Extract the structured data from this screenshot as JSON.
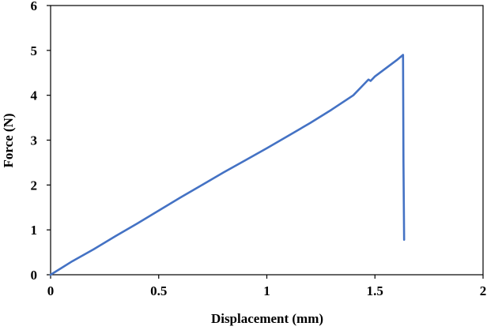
{
  "chart_data": {
    "type": "line",
    "title": "",
    "xlabel": "Displacement (mm)",
    "ylabel": "Force (N)",
    "xlim": [
      0,
      2
    ],
    "ylim": [
      0,
      6
    ],
    "xticks": [
      0,
      0.5,
      1,
      1.5,
      2
    ],
    "xtick_labels": [
      "0",
      "0.5",
      "1",
      "1.5",
      "2"
    ],
    "yticks": [
      0,
      1,
      2,
      3,
      4,
      5,
      6
    ],
    "ytick_labels": [
      "0",
      "1",
      "2",
      "3",
      "4",
      "5",
      "6"
    ],
    "grid": false,
    "legend": "none",
    "series": [
      {
        "color": "#4472C4",
        "x": [
          0,
          0.05,
          0.1,
          0.2,
          0.3,
          0.4,
          0.5,
          0.6,
          0.7,
          0.8,
          0.9,
          1.0,
          1.1,
          1.2,
          1.3,
          1.4,
          1.46,
          1.47,
          1.48,
          1.5,
          1.55,
          1.6,
          1.625,
          1.63,
          1.632,
          1.635
        ],
        "y": [
          0,
          0.15,
          0.3,
          0.57,
          0.86,
          1.14,
          1.43,
          1.72,
          2.0,
          2.28,
          2.55,
          2.82,
          3.1,
          3.38,
          3.68,
          4.0,
          4.3,
          4.35,
          4.32,
          4.42,
          4.6,
          4.78,
          4.88,
          4.9,
          2.5,
          0.78
        ]
      }
    ]
  }
}
